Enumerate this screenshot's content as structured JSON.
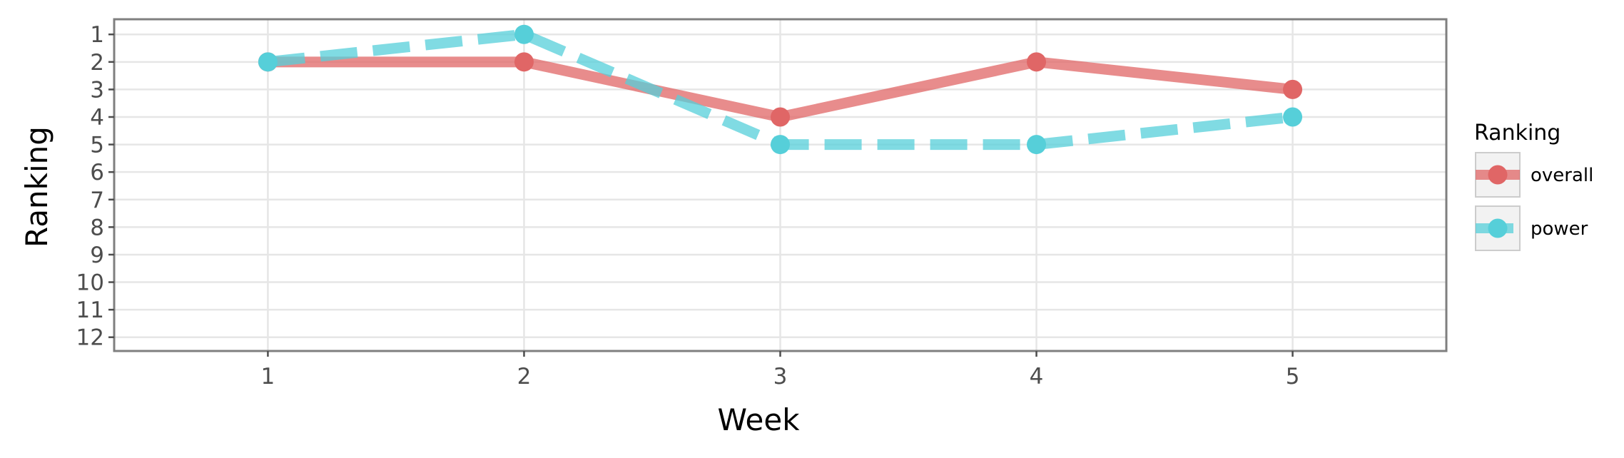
{
  "chart_data": {
    "type": "line",
    "title": "",
    "xlabel": "Week",
    "ylabel": "Ranking",
    "x": [
      1,
      2,
      3,
      4,
      5
    ],
    "x_ticks": [
      "1",
      "2",
      "3",
      "4",
      "5"
    ],
    "xlim": [
      0.4,
      5.6
    ],
    "y_ticks": [
      "1",
      "2",
      "3",
      "4",
      "5",
      "6",
      "7",
      "8",
      "9",
      "10",
      "11",
      "12"
    ],
    "ylim": [
      12.5,
      0.45
    ],
    "y_reversed": true,
    "grid": true,
    "legend": {
      "title": "Ranking",
      "placement": "right"
    },
    "series": [
      {
        "name": "overall",
        "values": [
          2,
          2,
          4,
          2,
          3
        ],
        "color": "#e06666",
        "line": "solid"
      },
      {
        "name": "power",
        "values": [
          2,
          1,
          5,
          5,
          4
        ],
        "color": "#56cfd9",
        "line": "dashed"
      }
    ]
  }
}
